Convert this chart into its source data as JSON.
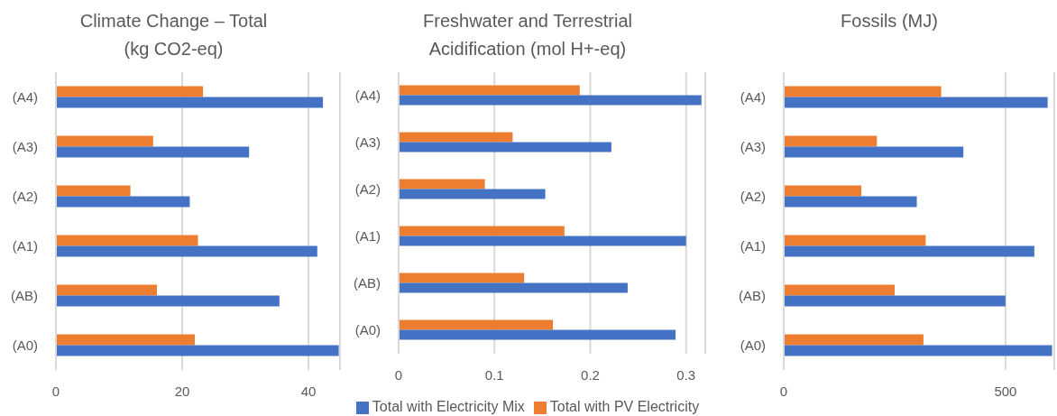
{
  "chart_data": [
    {
      "type": "bar",
      "orientation": "horizontal",
      "title": "Climate Change – Total (kg CO2-eq)",
      "categories": [
        "(A4)",
        "(A3)",
        "(A2)",
        "(A1)",
        "(AB)",
        "(A0)"
      ],
      "series": [
        {
          "color": "#ed7d31",
          "values": [
            23.3,
            15.4,
            11.8,
            22.5,
            16.0,
            22.0
          ]
        },
        {
          "color": "#4472c4",
          "values": [
            42.3,
            30.6,
            21.2,
            41.4,
            35.4,
            44.8
          ]
        }
      ],
      "xlim": [
        0,
        45
      ],
      "xticks": [
        0,
        20,
        40
      ],
      "grid": "x"
    },
    {
      "type": "bar",
      "orientation": "horizontal",
      "title": "Freshwater and Terrestrial Acidification (mol H+-eq)",
      "categories": [
        "(A4)",
        "(A3)",
        "(A2)",
        "(A1)",
        "(AB)",
        "(A0)"
      ],
      "series": [
        {
          "name": "Total with PV Electricity",
          "color": "#ed7d31",
          "values": [
            0.189,
            0.119,
            0.09,
            0.173,
            0.131,
            0.161
          ]
        },
        {
          "name": "Total with Electricity Mix",
          "color": "#4472c4",
          "values": [
            0.316,
            0.222,
            0.153,
            0.3,
            0.239,
            0.289
          ]
        }
      ],
      "xlim": [
        0,
        0.32
      ],
      "xticks": [
        0,
        0.1,
        0.2,
        0.3
      ],
      "grid": "x",
      "legend": "bottom"
    },
    {
      "type": "bar",
      "orientation": "horizontal",
      "title": "Fossils (MJ)",
      "categories": [
        "(A4)",
        "(A3)",
        "(A2)",
        "(A1)",
        "(AB)",
        "(A0)"
      ],
      "series": [
        {
          "color": "#ed7d31",
          "values": [
            355,
            210,
            175,
            320,
            250,
            315
          ]
        },
        {
          "color": "#4472c4",
          "values": [
            595,
            405,
            300,
            565,
            500,
            605
          ]
        }
      ],
      "xlim": [
        0,
        610
      ],
      "xticks": [
        0,
        500
      ],
      "grid": "x"
    }
  ]
}
